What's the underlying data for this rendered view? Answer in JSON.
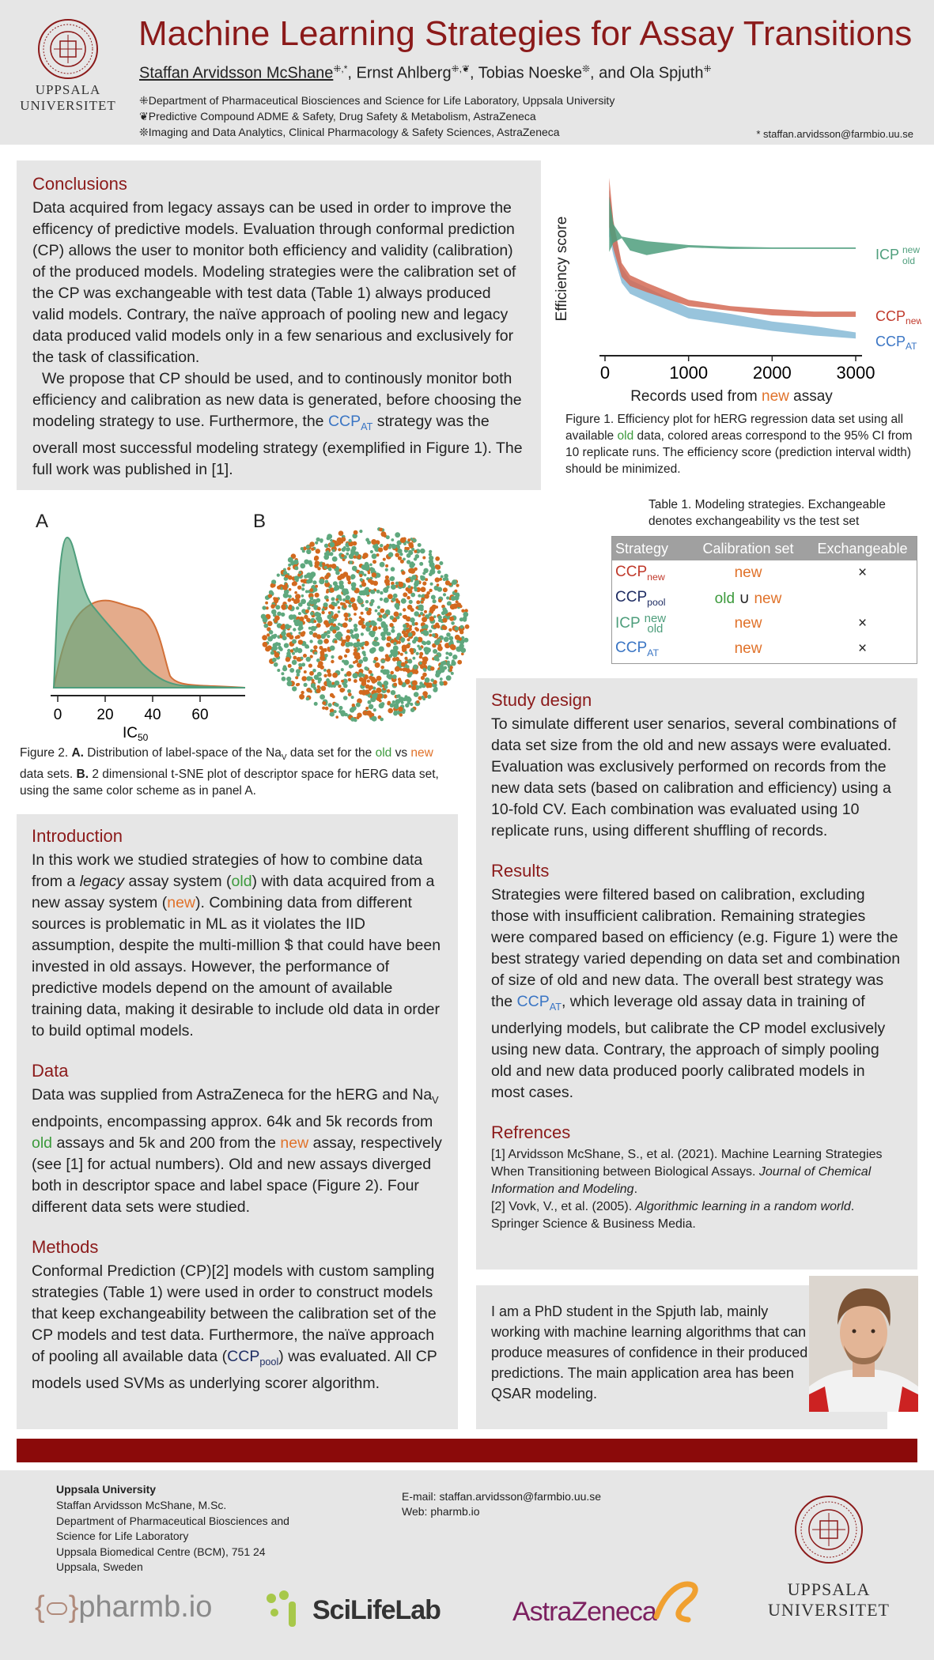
{
  "header": {
    "title": "Machine Learning Strategies for Assay Transitions",
    "author1": "Staffan Arvidsson McShane",
    "author1_marks": "⁜,*",
    "author2": ", Ernst Ahlberg",
    "author2_marks": "⁜,❦",
    "author3": ", Tobias Noeske",
    "author3_marks": "❊",
    "author4": ", and Ola Spjuth",
    "author4_marks": "⁜",
    "aff1": "⁜Department of Pharmaceutical Biosciences and Science for Life Laboratory, Uppsala University",
    "aff2": "❦Predictive Compound ADME & Safety, Drug Safety & Metabolism, AstraZeneca",
    "aff3": "❊Imaging and Data Analytics, Clinical Pharmacology & Safety Sciences, AstraZeneca",
    "contact": "* staffan.arvidsson@farmbio.uu.se",
    "logo_line1": "UPPSALA",
    "logo_line2": "UNIVERSITET"
  },
  "conclusions": {
    "heading": "Conclusions",
    "p1": "Data acquired from legacy assays can be used in order to improve the efficency of predictive models. Evaluation through conformal prediction (CP) allows the user to monitor both efficiency and validity (calibration) of the produced models. Modeling strategies were the calibration set of the CP was exchangeable with test data (Table 1) always produced valid models. Contrary, the naïve approach of pooling new and legacy data produced valid models only in a few senarious and exclusively for the task of classification.",
    "p2a": "We propose that CP should be used, and to continously monitor both efficiency and calibration as new data is generated, before choosing the modeling strategy to use. Furthermore, the ",
    "p2_ccp": "CCP",
    "p2_sub": "AT",
    "p2b": " strategy was the overall most successful modeling strategy (exemplified in Figure 1). The full work was published in [1]."
  },
  "figure1": {
    "ylabel": "Efficiency score",
    "xlabel_a": "Records used from ",
    "xlabel_new": "new",
    "xlabel_b": " assay",
    "xticks": [
      "0",
      "1000",
      "2000",
      "3000"
    ],
    "label_icp": "ICP",
    "label_icp_sup": "new",
    "label_icp_sub": "old",
    "label_ccpnew": "CCP",
    "label_ccpnew_sub": "new",
    "label_ccpat": "CCP",
    "label_ccpat_sub": "AT",
    "cap_a": "Figure 1. Efficiency plot for hERG regression data set using all available ",
    "cap_old": "old",
    "cap_b": " data, colored areas correspond to the 95% CI from 10 replicate runs. The efficiency score (prediction interval width) should be minimized."
  },
  "chart_data": {
    "type": "area",
    "xlabel": "Records used from new assay",
    "ylabel": "Efficiency score",
    "xlim": [
      0,
      3000
    ],
    "xticks": [
      0,
      1000,
      2000,
      3000
    ],
    "series": [
      {
        "name": "ICP new/old",
        "color": "#4e9e7c",
        "x": [
          50,
          100,
          200,
          300,
          500,
          1000,
          1500,
          2000,
          2500,
          3000
        ],
        "lower": [
          0.62,
          0.68,
          0.71,
          0.63,
          0.6,
          0.65,
          0.64,
          0.64,
          0.64,
          0.64
        ],
        "upper": [
          0.98,
          0.8,
          0.72,
          0.71,
          0.69,
          0.665,
          0.655,
          0.65,
          0.65,
          0.65
        ]
      },
      {
        "name": "CCP new",
        "color": "#d36a55",
        "x": [
          50,
          100,
          200,
          300,
          500,
          1000,
          1500,
          2000,
          2500,
          3000
        ],
        "lower": [
          0.78,
          0.64,
          0.46,
          0.4,
          0.36,
          0.27,
          0.24,
          0.21,
          0.2,
          0.2
        ],
        "upper": [
          1.1,
          0.82,
          0.55,
          0.47,
          0.42,
          0.31,
          0.27,
          0.25,
          0.235,
          0.235
        ]
      },
      {
        "name": "CCP AT",
        "color": "#86bad6",
        "x": [
          50,
          100,
          200,
          300,
          500,
          1000,
          1500,
          2000,
          2500,
          3000
        ],
        "lower": [
          0.72,
          0.6,
          0.42,
          0.35,
          0.3,
          0.19,
          0.15,
          0.11,
          0.08,
          0.06
        ],
        "upper": [
          1.02,
          0.82,
          0.52,
          0.44,
          0.39,
          0.26,
          0.22,
          0.17,
          0.14,
          0.1
        ]
      }
    ]
  },
  "table1": {
    "caption": "Table 1. Modeling strategies. Exchangeable denotes exchangeability vs the test set",
    "headers": [
      "Strategy",
      "Calibration set",
      "Exchangeable"
    ],
    "rows": [
      {
        "strategy": "CCP",
        "sub": "new",
        "calib_new": "new",
        "exch": "×"
      },
      {
        "strategy": "CCP",
        "sub": "pool",
        "calib_old": "old",
        "calib_union": " ∪ ",
        "calib_new": "new",
        "exch": ""
      },
      {
        "strategy": "ICP",
        "sup": "new",
        "sub": "old",
        "calib_new": "new",
        "exch": "×"
      },
      {
        "strategy": "CCP",
        "sub": "AT",
        "calib_new": "new",
        "exch": "×"
      }
    ]
  },
  "figure2": {
    "label_a": "A",
    "label_b": "B",
    "xticks": [
      "0",
      "20",
      "40",
      "60"
    ],
    "xlabel": "IC",
    "xlabel_sub": "50",
    "cap_a": "Figure 2. ",
    "cap_a_bold": "A.",
    "cap_b": " Distribution of label-space of the Na",
    "cap_b_sub": "V",
    "cap_c": " data set for the ",
    "cap_old": "old",
    "cap_d": " vs ",
    "cap_new": "new",
    "cap_e": " data sets. ",
    "cap_b_bold": "B.",
    "cap_f": " 2 dimensional t-SNE plot of descriptor space for hERG data set, using the same color scheme as in panel A."
  },
  "introduction": {
    "heading": "Introduction",
    "t1": "In this work we studied strategies of how to combine data from a ",
    "legacy": "legacy",
    "t2": " assay system (",
    "old": "old",
    "t3": ") with data acquired from a new assay system (",
    "new": "new",
    "t4": "). Combining data from different sources is problematic in ML as it violates the IID assumption, despite the multi-million $ that could have been invested in old assays. However, the performance of predictive models depend on the amount of available training data, making it desirable to include old data in order to build optimal models."
  },
  "data_section": {
    "heading": "Data",
    "t1": "Data was supplied from AstraZeneca for the hERG and Na",
    "sub": "V",
    "t2": " endpoints, encompassing approx. 64k and 5k records from ",
    "old": "old",
    "t3": " assays and 5k and 200 from the ",
    "new": "new",
    "t4": " assay, respectively (see [1] for actual numbers). Old and new assays diverged both in descriptor space and label space (Figure 2). Four different data sets were studied."
  },
  "methods": {
    "heading": "Methods",
    "t1": "Conformal Prediction (CP)[2] models with custom sampling strategies (Table 1) were used in order to construct models that keep exchangeability between the calibration set of the CP models and test data. Furthermore, the naïve approach of pooling all available data (",
    "ccp": "CCP",
    "sub": "pool",
    "t2": ") was evaluated. All CP models used SVMs as underlying scorer algorithm."
  },
  "study_design": {
    "heading": "Study design",
    "text": "To simulate different user senarios, several combinations of data set size from the old and new assays were evaluated. Evaluation was exclusively performed on records from the new data sets (based on calibration and efficiency) using a 10-fold CV. Each combination was evaluated using 10 replicate runs, using different shuffling of records."
  },
  "results": {
    "heading": "Results",
    "t1": "Strategies were filtered based on calibration, excluding those with insufficient calibration. Remaining strategies were compared based on efficiency (e.g. Figure 1) were the best strategy varied depending on data set and combination of size of old and new data. The overall best strategy was the ",
    "ccp": "CCP",
    "sub": "AT",
    "t2": ", which leverage old assay data in training of underlying models, but calibrate the CP model exclusively using new data. Contrary, the approach of simply pooling old and new data produced poorly calibrated models in most cases."
  },
  "references": {
    "heading": "Refrences",
    "r1a": "[1] Arvidsson McShane, S., et al. (2021). Machine Learning Strategies When Transitioning between Biological Assays. ",
    "r1i": "Journal of Chemical Information and Modeling",
    "r1b": ".",
    "r2a": "[2] Vovk, V., et al. (2005). ",
    "r2i": "Algorithmic learning in a random world",
    "r2b": ". Springer Science & Business Media."
  },
  "bio": {
    "text": "I am a PhD student in the Spjuth lab, mainly working with machine learning algorithms that can produce measures of confidence in their produced predictions. The main application area has been QSAR modeling."
  },
  "footer": {
    "org": "Uppsala University",
    "lines": [
      "Staffan Arvidsson McShane, M.Sc.",
      "Department of Pharmaceutical Biosciences and",
      "Science for Life Laboratory",
      "Uppsala Biomedical Centre (BCM), 751 24",
      "Uppsala, Sweden"
    ],
    "email": "E-mail: staffan.arvidsson@farmbio.uu.se",
    "web": "Web: pharmb.io",
    "logo_pharmbio": "pharmb.io",
    "logo_pharmbio_brace": "{",
    "logo_pharmbio_brace_close": "}",
    "logo_scilife": "SciLifeLab",
    "logo_az": "AstraZeneca",
    "logo_uu1": "UPPSALA",
    "logo_uu2": "UNIVERSITET"
  },
  "colors": {
    "maroon": "#8b1a1a",
    "old": "#3c9a3c",
    "new": "#e0722a",
    "ccpat": "#3a75c4",
    "navy": "#1f2d63"
  }
}
